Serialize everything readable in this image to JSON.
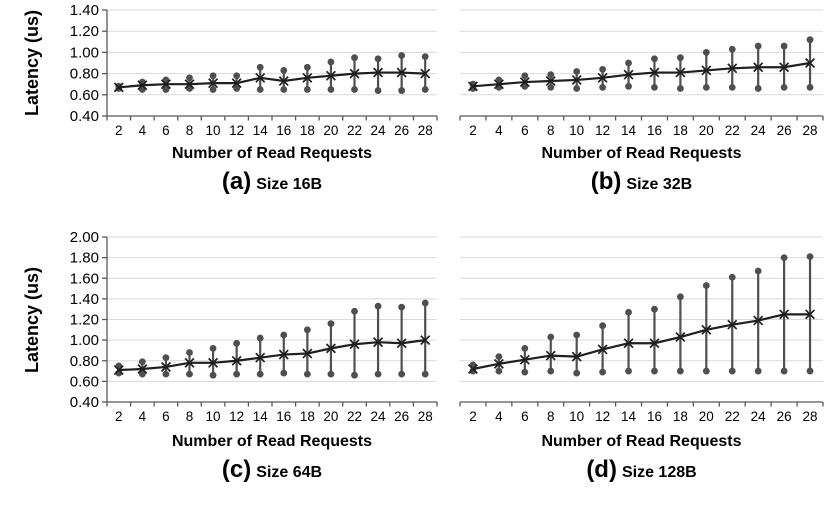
{
  "colors": {
    "grid": "#d9d9d9",
    "axis": "#595959",
    "marker": "#4f4f4f",
    "line": "#1f1f1f",
    "text": "#000000"
  },
  "chart_data": [
    {
      "id": "a",
      "type": "line",
      "caption_prefix": "(a)",
      "caption_text": "Size 16B",
      "xlabel": "Number of Read Requests",
      "ylabel": "Latency (us)",
      "x": [
        2,
        4,
        6,
        8,
        10,
        12,
        14,
        16,
        18,
        20,
        22,
        24,
        26,
        28
      ],
      "ylim": [
        0.4,
        1.4
      ],
      "yticks": [
        "0.40",
        "0.60",
        "0.80",
        "1.00",
        "1.20",
        "1.40"
      ],
      "grid": true,
      "legend": "none",
      "series": [
        {
          "name": "mean",
          "marker": "x",
          "values": [
            0.67,
            0.69,
            0.7,
            0.7,
            0.71,
            0.71,
            0.76,
            0.73,
            0.76,
            0.78,
            0.8,
            0.81,
            0.81,
            0.8
          ]
        },
        {
          "name": "max",
          "marker": "dot",
          "values": [
            0.68,
            0.72,
            0.74,
            0.76,
            0.78,
            0.78,
            0.86,
            0.83,
            0.86,
            0.91,
            0.95,
            0.94,
            0.97,
            0.96
          ]
        },
        {
          "name": "min",
          "marker": "dot",
          "values": [
            0.66,
            0.65,
            0.65,
            0.66,
            0.65,
            0.66,
            0.65,
            0.65,
            0.65,
            0.65,
            0.65,
            0.64,
            0.64,
            0.65
          ]
        }
      ]
    },
    {
      "id": "b",
      "type": "line",
      "caption_prefix": "(b)",
      "caption_text": "Size 32B",
      "xlabel": "Number of Read Requests",
      "ylabel": "",
      "x": [
        2,
        4,
        6,
        8,
        10,
        12,
        14,
        16,
        18,
        20,
        22,
        24,
        26,
        28
      ],
      "ylim": [
        0.4,
        1.4
      ],
      "yticks": [],
      "grid": true,
      "legend": "none",
      "series": [
        {
          "name": "mean",
          "marker": "x",
          "values": [
            0.68,
            0.7,
            0.72,
            0.73,
            0.74,
            0.76,
            0.79,
            0.81,
            0.81,
            0.83,
            0.85,
            0.86,
            0.86,
            0.9
          ]
        },
        {
          "name": "max",
          "marker": "dot",
          "values": [
            0.7,
            0.74,
            0.78,
            0.79,
            0.82,
            0.84,
            0.9,
            0.94,
            0.95,
            1.0,
            1.03,
            1.06,
            1.06,
            1.12
          ]
        },
        {
          "name": "min",
          "marker": "dot",
          "values": [
            0.66,
            0.67,
            0.68,
            0.67,
            0.66,
            0.67,
            0.68,
            0.67,
            0.66,
            0.67,
            0.67,
            0.66,
            0.67,
            0.67
          ]
        }
      ]
    },
    {
      "id": "c",
      "type": "line",
      "caption_prefix": "(c)",
      "caption_text": "Size 64B",
      "xlabel": "Number of Read Requests",
      "ylabel": "Latency (us)",
      "x": [
        2,
        4,
        6,
        8,
        10,
        12,
        14,
        16,
        18,
        20,
        22,
        24,
        26,
        28
      ],
      "ylim": [
        0.4,
        2.0
      ],
      "yticks": [
        "0.40",
        "0.60",
        "0.80",
        "1.00",
        "1.20",
        "1.40",
        "1.60",
        "1.80",
        "2.00"
      ],
      "grid": true,
      "legend": "none",
      "series": [
        {
          "name": "mean",
          "marker": "x",
          "values": [
            0.71,
            0.72,
            0.74,
            0.78,
            0.78,
            0.8,
            0.83,
            0.86,
            0.87,
            0.92,
            0.96,
            0.98,
            0.97,
            1.0
          ]
        },
        {
          "name": "max",
          "marker": "dot",
          "values": [
            0.75,
            0.79,
            0.83,
            0.88,
            0.92,
            0.97,
            1.02,
            1.05,
            1.1,
            1.16,
            1.28,
            1.33,
            1.32,
            1.36
          ]
        },
        {
          "name": "min",
          "marker": "dot",
          "values": [
            0.68,
            0.67,
            0.67,
            0.67,
            0.66,
            0.67,
            0.67,
            0.68,
            0.67,
            0.67,
            0.66,
            0.67,
            0.67,
            0.67
          ]
        }
      ]
    },
    {
      "id": "d",
      "type": "line",
      "caption_prefix": "(d)",
      "caption_text": "Size 128B",
      "xlabel": "Number of Read Requests",
      "ylabel": "",
      "x": [
        2,
        4,
        6,
        8,
        10,
        12,
        14,
        16,
        18,
        20,
        22,
        24,
        26,
        28
      ],
      "ylim": [
        0.4,
        2.0
      ],
      "yticks": [],
      "grid": true,
      "legend": "none",
      "series": [
        {
          "name": "mean",
          "marker": "x",
          "values": [
            0.72,
            0.77,
            0.81,
            0.85,
            0.84,
            0.91,
            0.97,
            0.97,
            1.03,
            1.1,
            1.15,
            1.19,
            1.25,
            1.25
          ]
        },
        {
          "name": "max",
          "marker": "dot",
          "values": [
            0.76,
            0.84,
            0.92,
            1.03,
            1.05,
            1.14,
            1.27,
            1.3,
            1.42,
            1.53,
            1.61,
            1.67,
            1.8,
            1.81
          ]
        },
        {
          "name": "min",
          "marker": "dot",
          "values": [
            0.7,
            0.7,
            0.69,
            0.7,
            0.68,
            0.69,
            0.7,
            0.7,
            0.7,
            0.7,
            0.7,
            0.7,
            0.7,
            0.7
          ]
        }
      ]
    }
  ]
}
